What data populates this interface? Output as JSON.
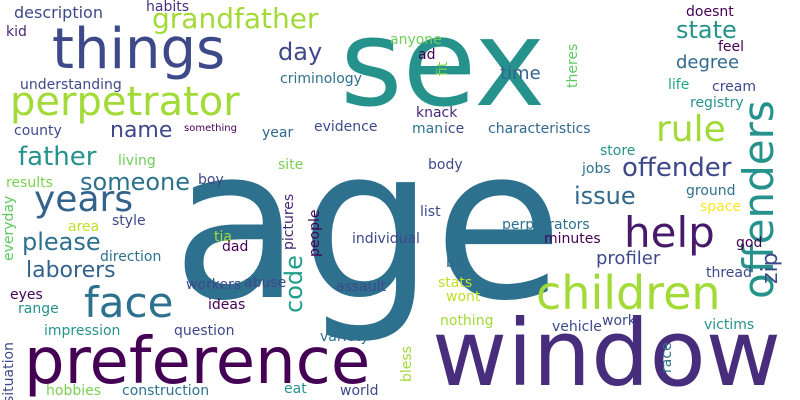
{
  "words": [
    {
      "text": "sex",
      "color": "#26928c"
    },
    {
      "text": "age",
      "color": "#2d718e"
    },
    {
      "text": "window",
      "color": "#472d7b"
    },
    {
      "text": "preference",
      "color": "#440154"
    },
    {
      "text": "things",
      "color": "#3e4989"
    },
    {
      "text": "perpetrator",
      "color": "#a2da37"
    },
    {
      "text": "children",
      "color": "#a2da37"
    },
    {
      "text": "offenders",
      "color": "#26928c"
    },
    {
      "text": "help",
      "color": "#481a6c"
    },
    {
      "text": "face",
      "color": "#2d718e"
    },
    {
      "text": "years",
      "color": "#33638d"
    },
    {
      "text": "rule",
      "color": "#a2da37"
    },
    {
      "text": "grandfather",
      "color": "#a2da37"
    },
    {
      "text": "father",
      "color": "#26928c"
    },
    {
      "text": "someone",
      "color": "#2d718e"
    },
    {
      "text": "please",
      "color": "#2d718e"
    },
    {
      "text": "laborers",
      "color": "#33638d"
    },
    {
      "text": "offender",
      "color": "#3e4989"
    },
    {
      "text": "code",
      "color": "#1f9e89"
    },
    {
      "text": "issue",
      "color": "#31688e"
    },
    {
      "text": "name",
      "color": "#3e4989"
    },
    {
      "text": "day",
      "color": "#3e4989"
    },
    {
      "text": "state",
      "color": "#26928c"
    },
    {
      "text": "zip",
      "color": "#3e4989"
    },
    {
      "text": "degree",
      "color": "#31688e"
    },
    {
      "text": "time",
      "color": "#33638d"
    },
    {
      "text": "profiler",
      "color": "#3e4989"
    },
    {
      "text": "description",
      "color": "#3e4989"
    },
    {
      "text": "habits",
      "color": "#46337e"
    },
    {
      "text": "kid",
      "color": "#482878"
    },
    {
      "text": "anyone",
      "color": "#6ece58"
    },
    {
      "text": "doesnt",
      "color": "#440154"
    },
    {
      "text": "ad",
      "color": "#440154"
    },
    {
      "text": "feel",
      "color": "#440154"
    },
    {
      "text": "understanding",
      "color": "#3e4989"
    },
    {
      "text": "criminology",
      "color": "#2d718e"
    },
    {
      "text": "fit",
      "color": "#7ad151"
    },
    {
      "text": "theres",
      "color": "#5ec962"
    },
    {
      "text": "life",
      "color": "#22a884"
    },
    {
      "text": "cream",
      "color": "#3e4989"
    },
    {
      "text": "registry",
      "color": "#26928c"
    },
    {
      "text": "knack",
      "color": "#482878"
    },
    {
      "text": "county",
      "color": "#3e4989"
    },
    {
      "text": "year",
      "color": "#31688e"
    },
    {
      "text": "something",
      "color": "#440154"
    },
    {
      "text": "evidence",
      "color": "#3e4989"
    },
    {
      "text": "man",
      "color": "#2d718e"
    },
    {
      "text": "ice",
      "color": "#3e4989"
    },
    {
      "text": "characteristics",
      "color": "#31688e"
    },
    {
      "text": "site",
      "color": "#7ad151"
    },
    {
      "text": "store",
      "color": "#26928c"
    },
    {
      "text": "living",
      "color": "#6ece58"
    },
    {
      "text": "body",
      "color": "#3e4989"
    },
    {
      "text": "jobs",
      "color": "#2d718e"
    },
    {
      "text": "results",
      "color": "#7ad151"
    },
    {
      "text": "boy",
      "color": "#3e4989"
    },
    {
      "text": "ground",
      "color": "#2d718e"
    },
    {
      "text": "everyday",
      "color": "#5ec962"
    },
    {
      "text": "style",
      "color": "#3e4989"
    },
    {
      "text": "pictures",
      "color": "#482878"
    },
    {
      "text": "people",
      "color": "#440154"
    },
    {
      "text": "list",
      "color": "#3e4989"
    },
    {
      "text": "perpetrators",
      "color": "#2d718e"
    },
    {
      "text": "space",
      "color": "#fde725"
    },
    {
      "text": "area",
      "color": "#c0df25"
    },
    {
      "text": "tia",
      "color": "#a2da37"
    },
    {
      "text": "individual",
      "color": "#3e4989"
    },
    {
      "text": "minutes",
      "color": "#440154"
    },
    {
      "text": "god",
      "color": "#440154"
    },
    {
      "text": "dad",
      "color": "#440154"
    },
    {
      "text": "direction",
      "color": "#2d718e"
    },
    {
      "text": "bit",
      "color": "#31688e"
    },
    {
      "text": "thread",
      "color": "#3e4989"
    },
    {
      "text": "eyes",
      "color": "#440154"
    },
    {
      "text": "workers",
      "color": "#3e4989"
    },
    {
      "text": "abuse",
      "color": "#3e4989"
    },
    {
      "text": "assault",
      "color": "#3e4989"
    },
    {
      "text": "stats",
      "color": "#c0df25"
    },
    {
      "text": "range",
      "color": "#26928c"
    },
    {
      "text": "ideas",
      "color": "#440154"
    },
    {
      "text": "wont",
      "color": "#bddf26"
    },
    {
      "text": "impression",
      "color": "#26928c"
    },
    {
      "text": "nothing",
      "color": "#a2da37"
    },
    {
      "text": "work",
      "color": "#3e4989"
    },
    {
      "text": "question",
      "color": "#3e4989"
    },
    {
      "text": "variety",
      "color": "#2d718e"
    },
    {
      "text": "vehicle",
      "color": "#3e4989"
    },
    {
      "text": "victims",
      "color": "#26928c"
    },
    {
      "text": "race",
      "color": "#2d718e"
    },
    {
      "text": "situation",
      "color": "#3e4989"
    },
    {
      "text": "bless",
      "color": "#a2da37"
    },
    {
      "text": "hobbies",
      "color": "#7ad151"
    },
    {
      "text": "construction",
      "color": "#2d718e"
    },
    {
      "text": "eat",
      "color": "#26928c"
    },
    {
      "text": "world",
      "color": "#3e4989"
    }
  ]
}
